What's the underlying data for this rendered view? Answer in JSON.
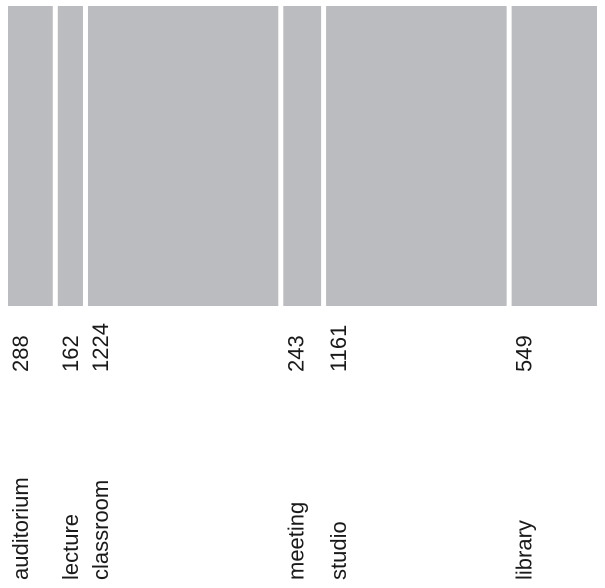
{
  "chart_data": {
    "type": "bar",
    "subtype": "marimekko-width",
    "categories": [
      "auditorium",
      "lecture",
      "classroom",
      "meeting",
      "studio",
      "library"
    ],
    "values": [
      288,
      162,
      1224,
      243,
      1161,
      549
    ],
    "value_labels": [
      "288",
      "162",
      "1224",
      "243",
      "1161",
      "549"
    ],
    "title": "",
    "xlabel": "",
    "ylabel": "",
    "grid": false,
    "legend": "none",
    "colors": {
      "segment": "#bbbcbf",
      "text": "#1a1a1a",
      "background": "#ffffff"
    }
  }
}
